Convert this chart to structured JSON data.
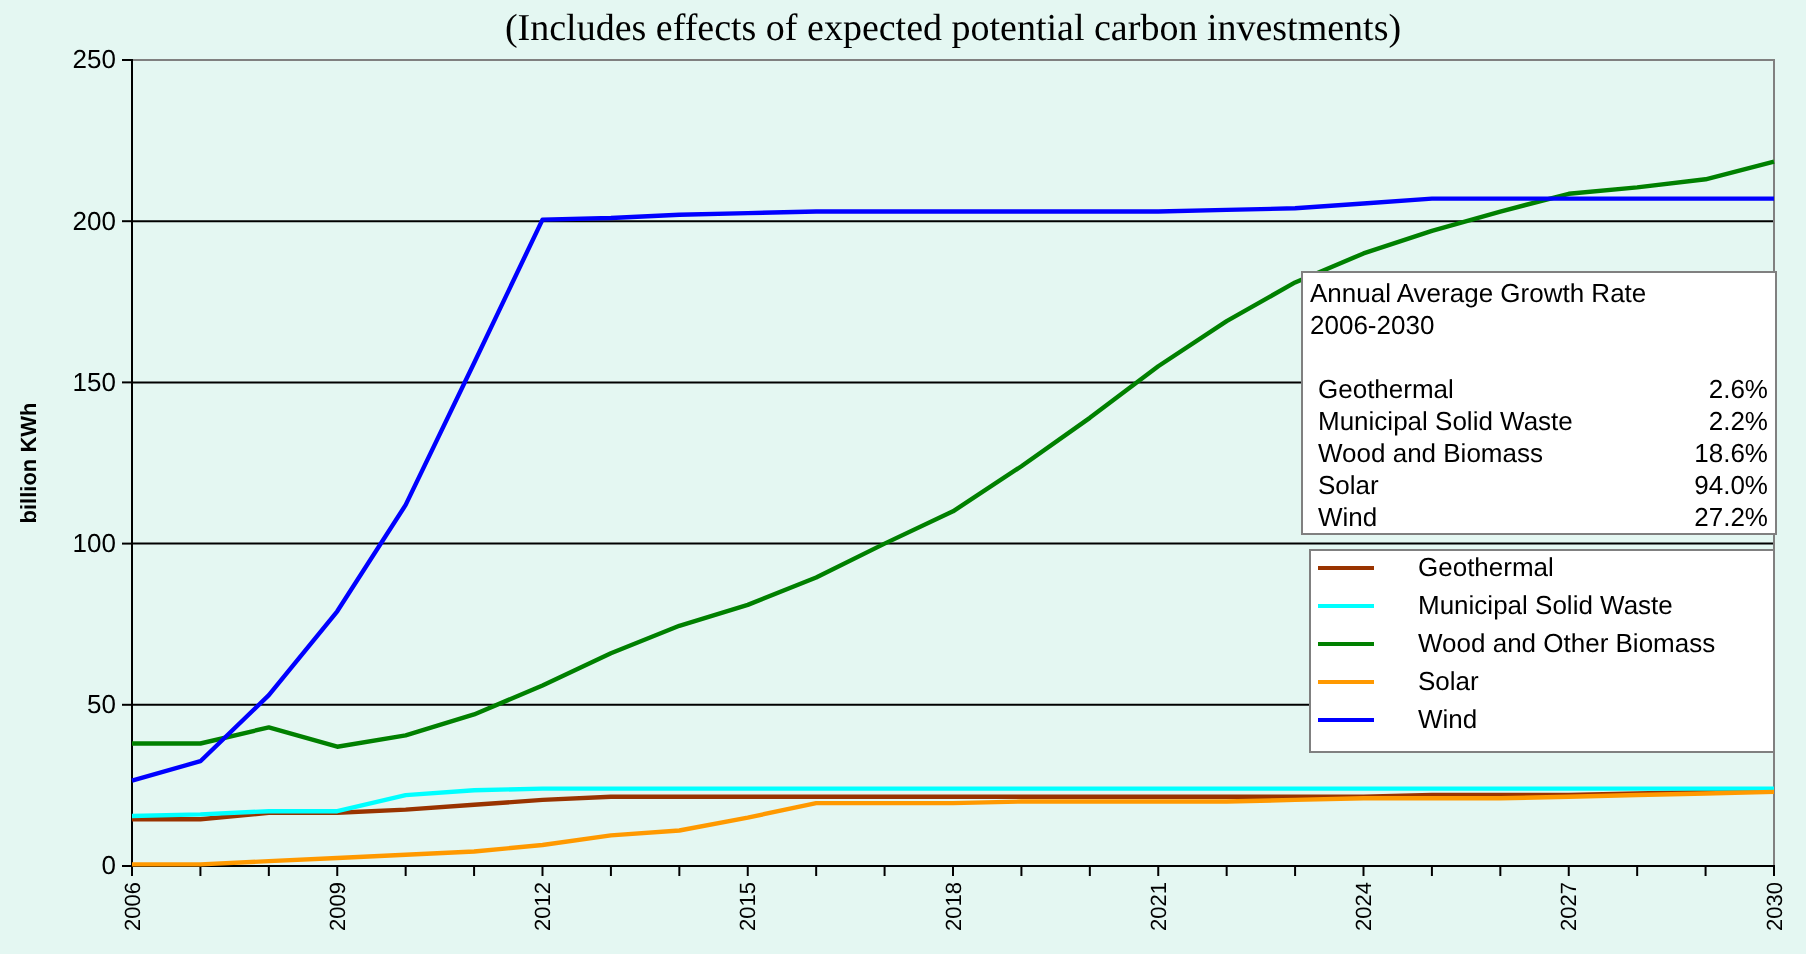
{
  "chart_data": {
    "type": "line",
    "title": "(Includes effects of expected potential carbon investments)",
    "ylabel": "billion KWh",
    "x": [
      2006,
      2007,
      2008,
      2009,
      2010,
      2011,
      2012,
      2013,
      2014,
      2015,
      2016,
      2017,
      2018,
      2019,
      2020,
      2021,
      2022,
      2023,
      2024,
      2025,
      2026,
      2027,
      2028,
      2029,
      2030
    ],
    "xlim": [
      2006,
      2030
    ],
    "xticks": [
      2006,
      {
        "value": 2007,
        "label": null
      },
      {
        "value": 2008,
        "label": null
      },
      2009,
      {
        "value": 2010,
        "label": null
      },
      {
        "value": 2011,
        "label": null
      },
      2012,
      {
        "value": 2013,
        "label": null
      },
      {
        "value": 2014,
        "label": null
      },
      2015,
      {
        "value": 2016,
        "label": null
      },
      {
        "value": 2017,
        "label": null
      },
      2018,
      {
        "value": 2019,
        "label": null
      },
      {
        "value": 2020,
        "label": null
      },
      2021,
      {
        "value": 2022,
        "label": null
      },
      {
        "value": 2023,
        "label": null
      },
      2024,
      {
        "value": 2025,
        "label": null
      },
      {
        "value": 2026,
        "label": null
      },
      2027,
      {
        "value": 2028,
        "label": null
      },
      {
        "value": 2029,
        "label": null
      },
      2030
    ],
    "ylim": [
      0,
      250
    ],
    "yticks": [
      0,
      50,
      100,
      150,
      200,
      250
    ],
    "grid": "y",
    "legend": "right",
    "marker": "none",
    "line_style": "solid",
    "series": [
      {
        "name": "Geothermal",
        "color": "#993300",
        "values": [
          14.5,
          14.5,
          16.5,
          16.5,
          17.5,
          19,
          20.5,
          21.5,
          21.5,
          21.5,
          21.5,
          21.5,
          21.5,
          21.5,
          21.5,
          21.5,
          21.5,
          21.5,
          21.5,
          22,
          22,
          22,
          22.5,
          23,
          23.5
        ]
      },
      {
        "name": "Municipal Solid Waste",
        "color": "#00ffff",
        "values": [
          15.5,
          16,
          17,
          17,
          22,
          23.5,
          24,
          24,
          24,
          24,
          24,
          24,
          24,
          24,
          24,
          24,
          24,
          24,
          24,
          24,
          24,
          24,
          24,
          24,
          24
        ]
      },
      {
        "name": "Wood and Other Biomass",
        "color": "#008000",
        "values": [
          38,
          38,
          43,
          37,
          40.5,
          47,
          56,
          66,
          74.5,
          81,
          89.5,
          100,
          110,
          124,
          139,
          155,
          169,
          181,
          190,
          197,
          203,
          208.5,
          210.5,
          213,
          218.5
        ]
      },
      {
        "name": "Solar",
        "color": "#ff9900",
        "values": [
          0.5,
          0.5,
          1.5,
          2.5,
          3.5,
          4.5,
          6.5,
          9.5,
          11,
          15,
          19.5,
          19.5,
          19.5,
          20,
          20,
          20,
          20,
          20.5,
          21,
          21,
          21,
          21.5,
          22,
          22.5,
          23
        ]
      },
      {
        "name": "Wind",
        "color": "#0000ff",
        "values": [
          26.5,
          32.5,
          53,
          79,
          112,
          156,
          200.5,
          201,
          202,
          202.5,
          203,
          203,
          203,
          203,
          203,
          203,
          203.5,
          204,
          205.5,
          207,
          207,
          207,
          207,
          207,
          207
        ]
      }
    ],
    "annotations": [
      "Annual Average Growth Rate\n2006-2030",
      "Geothermal\t2.6%",
      "Municipal Solid Waste\t2.2%",
      "Wood and Biomass\t18.6%",
      "Solar\t94.0%",
      "Wind\t27.2%"
    ]
  }
}
